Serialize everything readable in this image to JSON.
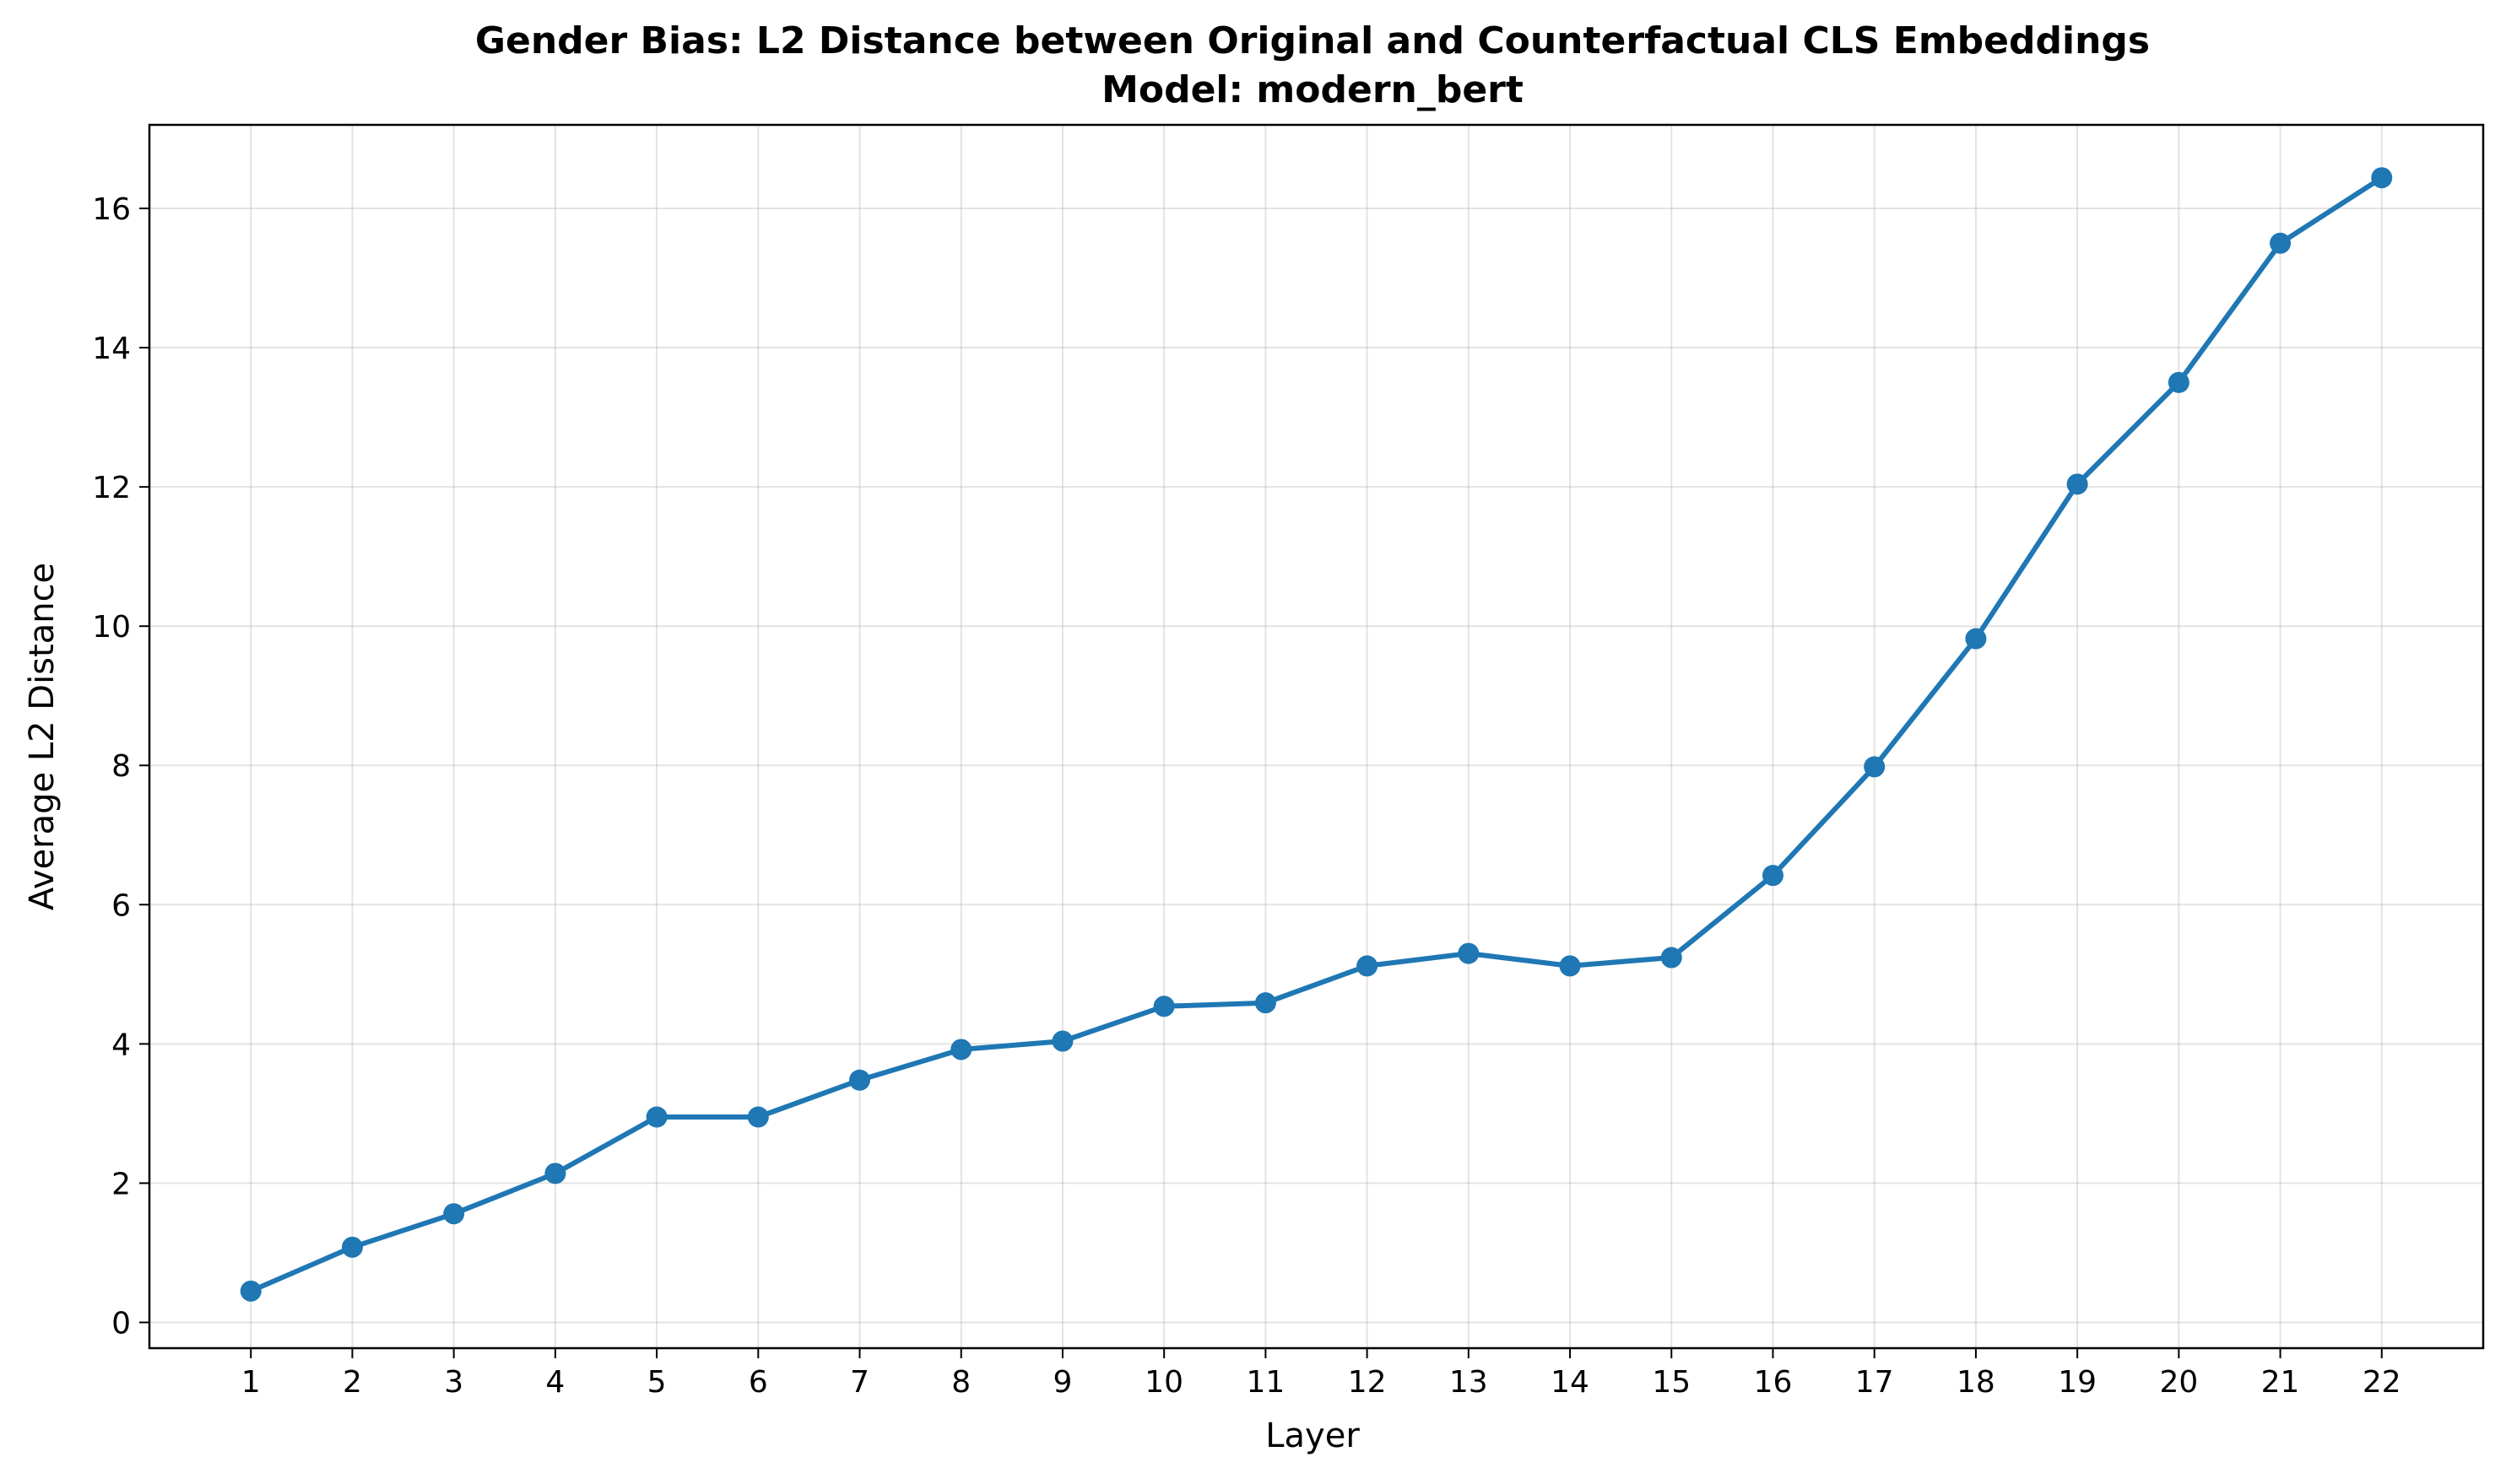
{
  "chart_data": {
    "type": "line",
    "title_line1": "Gender Bias: L2 Distance between Original and Counterfactual CLS Embeddings",
    "title_line2": "Model: modern_bert",
    "xlabel": "Layer",
    "ylabel": "Average L2 Distance",
    "x": [
      1,
      2,
      3,
      4,
      5,
      6,
      7,
      8,
      9,
      10,
      11,
      12,
      13,
      14,
      15,
      16,
      17,
      18,
      19,
      20,
      21,
      22
    ],
    "series": [
      {
        "values": [
          0.45,
          1.08,
          1.56,
          2.14,
          2.95,
          2.95,
          3.48,
          3.92,
          4.04,
          4.54,
          4.59,
          5.12,
          5.3,
          5.12,
          5.24,
          6.42,
          7.98,
          9.82,
          12.04,
          13.5,
          15.5,
          16.44
        ],
        "color": "#1f77b4",
        "marker": "circle"
      }
    ],
    "xlim": [
      0.0,
      23.0
    ],
    "ylim": [
      -0.37,
      17.2
    ],
    "yticks": [
      0,
      2,
      4,
      6,
      8,
      10,
      12,
      14,
      16
    ],
    "grid": true
  }
}
